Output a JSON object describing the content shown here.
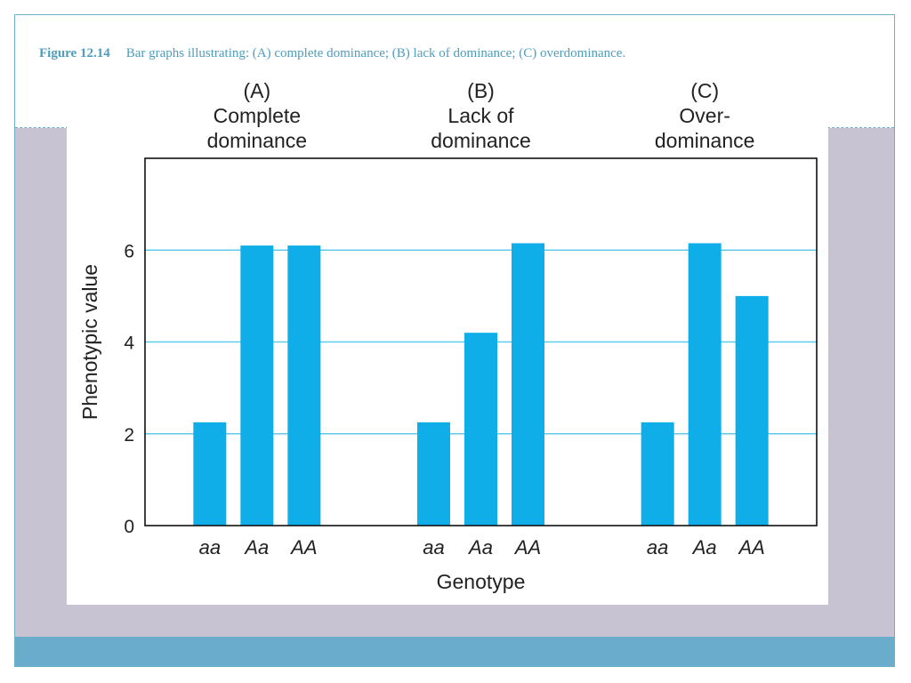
{
  "caption": {
    "figure_number": "Figure 12.14",
    "text": "Bar graphs illustrating: (A) complete dominance; (B) lack of dominance; (C) overdominance."
  },
  "colors": {
    "bar": "#10aee8",
    "gridline": "#5fcbea",
    "axis": "#111111",
    "caption": "#4f9dbd",
    "purple_band": "#c8c3d3",
    "footer_bar": "#6aaccb"
  },
  "chart_data": {
    "type": "bar",
    "ylabel": "Phenotypic value",
    "xlabel": "Genotype",
    "ylim": [
      0,
      8
    ],
    "yticks": [
      0,
      2,
      4,
      6
    ],
    "grid": "horizontal at 2, 4, 6",
    "groups": [
      {
        "label": [
          "(A)",
          "Complete",
          "dominance"
        ],
        "categories": [
          "aa",
          "Aa",
          "AA"
        ],
        "values": [
          2.25,
          6.1,
          6.1
        ]
      },
      {
        "label": [
          "(B)",
          "Lack of",
          "dominance"
        ],
        "categories": [
          "aa",
          "Aa",
          "AA"
        ],
        "values": [
          2.25,
          4.2,
          6.15
        ]
      },
      {
        "label": [
          "(C)",
          "Over-",
          "dominance"
        ],
        "categories": [
          "aa",
          "Aa",
          "AA"
        ],
        "values": [
          2.25,
          6.15,
          5.0
        ]
      }
    ]
  }
}
